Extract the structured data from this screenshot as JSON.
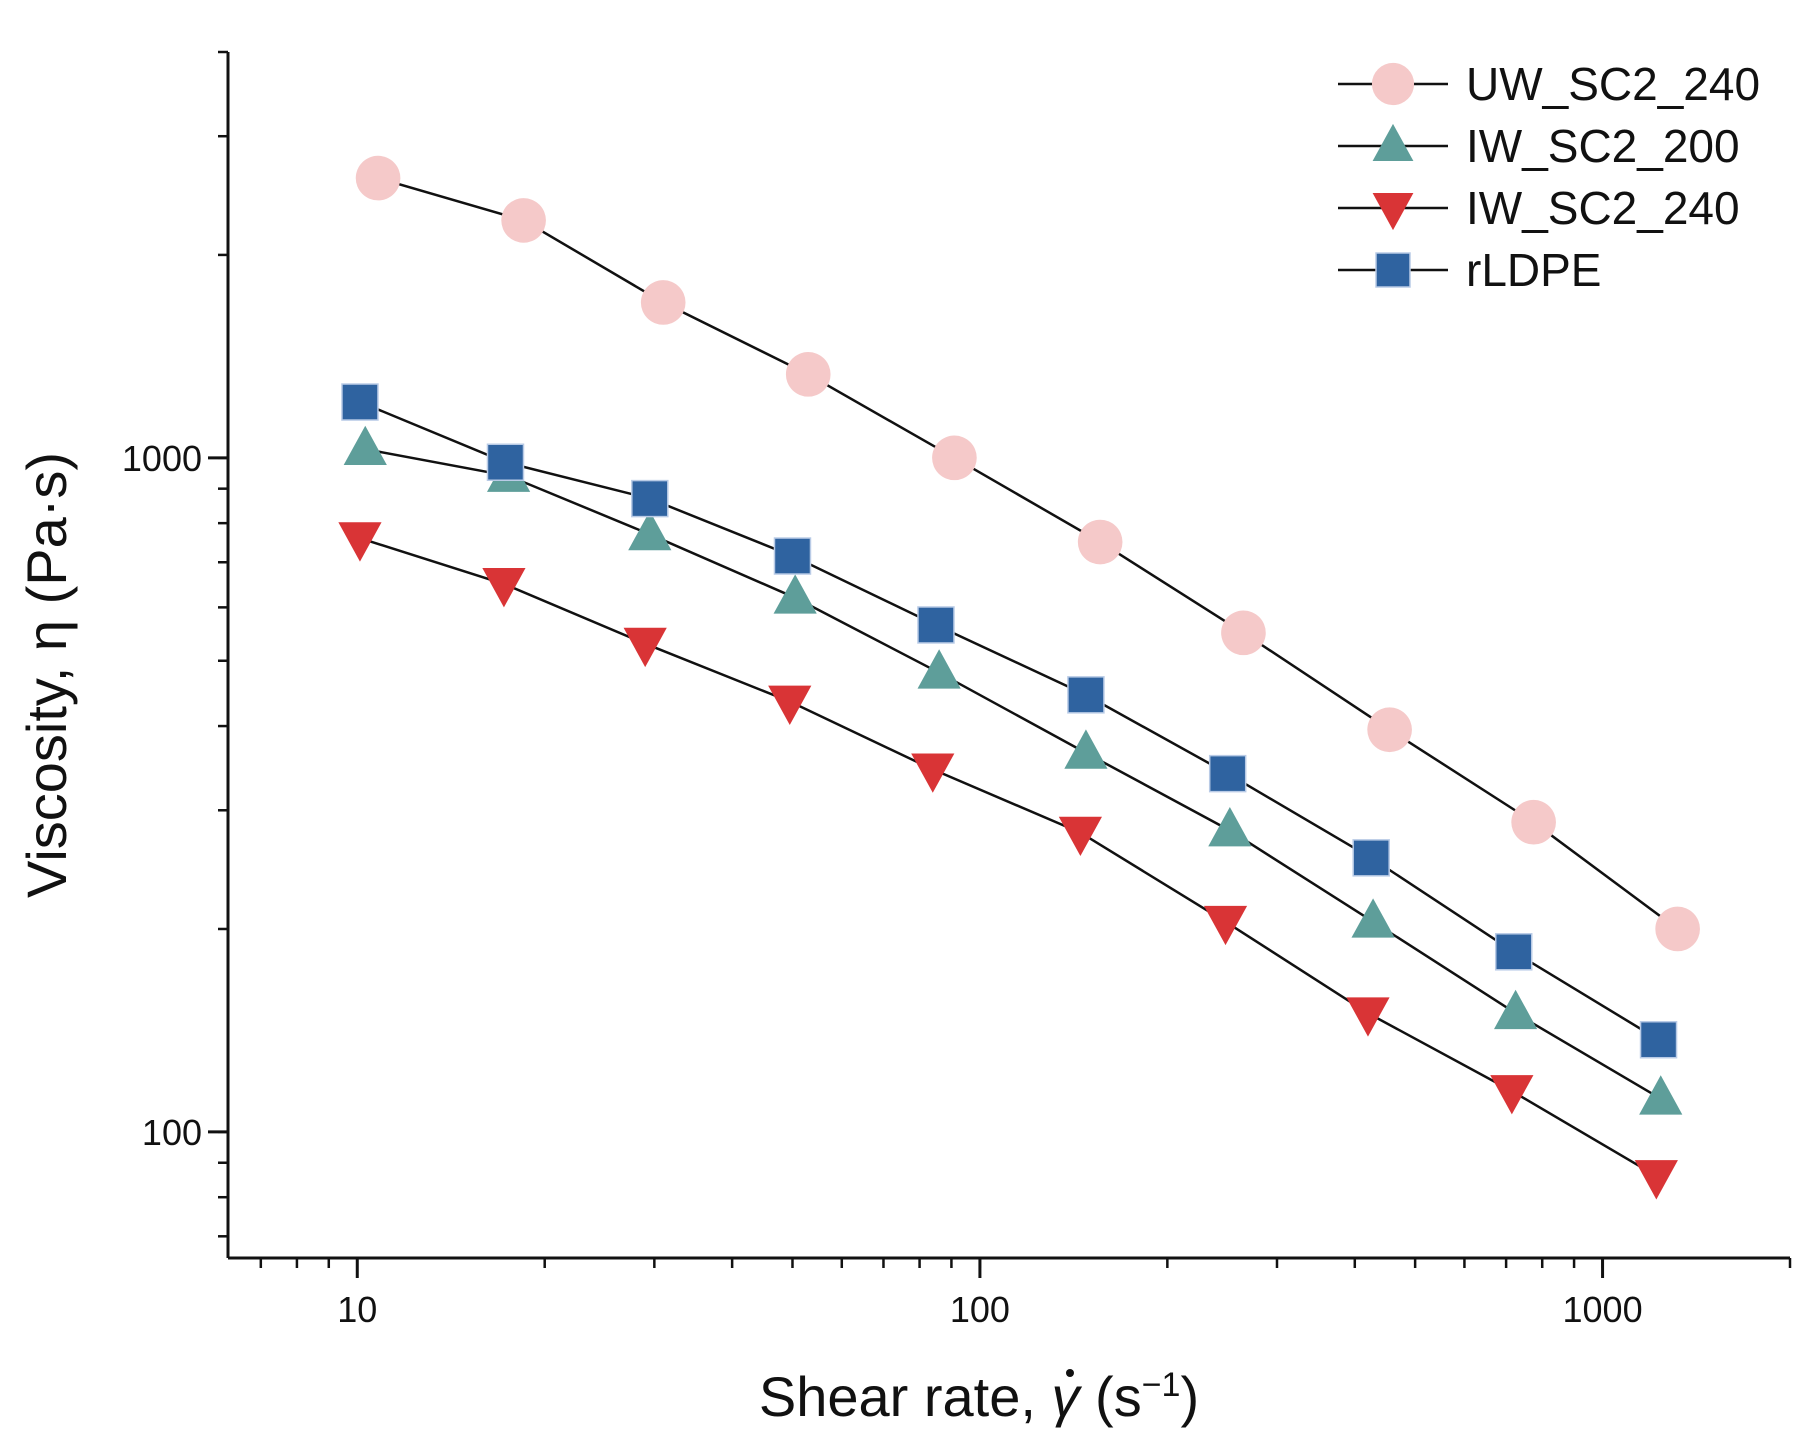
{
  "chart_data": {
    "type": "scatter",
    "title": "",
    "xlabel": "Shear rate, γ (s⁻¹)",
    "xlabel_parts": {
      "prefix": "Shear rate, ",
      "symbol": "γ",
      "unit_open": " (s",
      "exponent": "−1",
      "unit_close": ")"
    },
    "ylabel": "Viscosity, η (Pa·s)",
    "xscale": "log",
    "yscale": "log",
    "xlim": [
      6.2,
      2000
    ],
    "ylim": [
      65,
      4000
    ],
    "xticks": [
      {
        "value": 10,
        "label": "10"
      },
      {
        "value": 100,
        "label": "100"
      },
      {
        "value": 1000,
        "label": "1000"
      }
    ],
    "yticks": [
      {
        "value": 100,
        "label": "100"
      },
      {
        "value": 1000,
        "label": "1000"
      }
    ],
    "legend_position": "top-right",
    "series": [
      {
        "name": "UW_SC2_240",
        "marker": "circle",
        "color": "#f5c9c9",
        "points": [
          [
            10.8,
            2600
          ],
          [
            18.5,
            2250
          ],
          [
            31,
            1700
          ],
          [
            53,
            1330
          ],
          [
            91,
            1000
          ],
          [
            156,
            750
          ],
          [
            265,
            550
          ],
          [
            455,
            395
          ],
          [
            775,
            288
          ],
          [
            1320,
            200
          ]
        ]
      },
      {
        "name": "IW_SC2_200",
        "marker": "triangle-up",
        "color": "#5e9e9a",
        "points": [
          [
            10.3,
            1030
          ],
          [
            17.5,
            940
          ],
          [
            29.5,
            770
          ],
          [
            50.5,
            620
          ],
          [
            86,
            480
          ],
          [
            148,
            365
          ],
          [
            252,
            280
          ],
          [
            428,
            205
          ],
          [
            725,
            150
          ],
          [
            1240,
            112
          ]
        ]
      },
      {
        "name": "IW_SC2_240",
        "marker": "triangle-down",
        "color": "#d93436",
        "points": [
          [
            10.1,
            760
          ],
          [
            17.2,
            650
          ],
          [
            29,
            530
          ],
          [
            49.5,
            435
          ],
          [
            84,
            345
          ],
          [
            145,
            278
          ],
          [
            248,
            205
          ],
          [
            420,
            150
          ],
          [
            715,
            115
          ],
          [
            1220,
            86
          ]
        ]
      },
      {
        "name": "rLDPE",
        "marker": "square",
        "color": "#2f63a0",
        "points": [
          [
            10.1,
            1210
          ],
          [
            17.3,
            985
          ],
          [
            29.5,
            870
          ],
          [
            50,
            715
          ],
          [
            85,
            565
          ],
          [
            148,
            445
          ],
          [
            250,
            340
          ],
          [
            425,
            255
          ],
          [
            720,
            185
          ],
          [
            1230,
            137
          ]
        ]
      }
    ]
  }
}
